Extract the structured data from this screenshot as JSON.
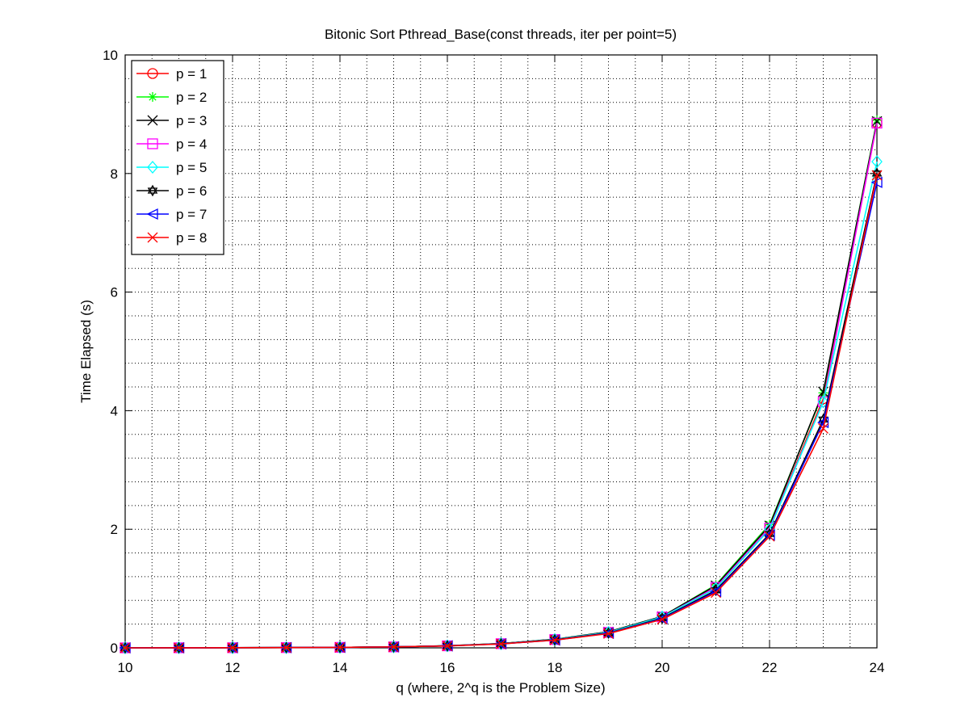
{
  "chart_data": {
    "type": "line",
    "title": "Bitonic Sort Pthread_Base(const threads, iter per point=5)",
    "xlabel": "q (where, 2^q is the Problem Size)",
    "ylabel": "Time Elapsed (s)",
    "xlim": [
      10,
      24
    ],
    "ylim": [
      0,
      10
    ],
    "xticks": [
      10,
      12,
      14,
      16,
      18,
      20,
      22,
      24
    ],
    "yticks": [
      0,
      2,
      4,
      6,
      8,
      10
    ],
    "x_minor_grid_step": 0.5,
    "y_minor_grid_step": 0.4,
    "grid": true,
    "legend_position": "top-left",
    "x": [
      10,
      11,
      12,
      13,
      14,
      15,
      16,
      17,
      18,
      19,
      20,
      21,
      22,
      23,
      24
    ],
    "series": [
      {
        "name": "p = 1",
        "color": "#ff0000",
        "marker": "circle",
        "values": [
          0.0,
          0.001,
          0.002,
          0.004,
          0.008,
          0.016,
          0.034,
          0.07,
          0.14,
          0.26,
          0.52,
          1.02,
          2.02,
          4.2,
          8.85
        ]
      },
      {
        "name": "p = 2",
        "color": "#00ff00",
        "marker": "asterisk",
        "values": [
          0.0,
          0.001,
          0.002,
          0.004,
          0.008,
          0.016,
          0.035,
          0.072,
          0.145,
          0.27,
          0.53,
          1.06,
          2.08,
          4.3,
          8.9
        ]
      },
      {
        "name": "p = 3",
        "color": "#000000",
        "marker": "x",
        "values": [
          0.0,
          0.001,
          0.002,
          0.004,
          0.008,
          0.016,
          0.035,
          0.072,
          0.145,
          0.27,
          0.53,
          1.05,
          2.06,
          4.32,
          8.88
        ]
      },
      {
        "name": "p = 4",
        "color": "#ff00ff",
        "marker": "square",
        "values": [
          0.0,
          0.001,
          0.002,
          0.004,
          0.008,
          0.016,
          0.034,
          0.07,
          0.14,
          0.26,
          0.52,
          1.02,
          2.02,
          4.15,
          8.85
        ]
      },
      {
        "name": "p = 5",
        "color": "#00ffff",
        "marker": "diamond",
        "values": [
          0.0,
          0.001,
          0.002,
          0.004,
          0.008,
          0.016,
          0.034,
          0.07,
          0.14,
          0.26,
          0.52,
          1.0,
          2.0,
          4.15,
          8.2
        ]
      },
      {
        "name": "p = 6",
        "color": "#000000",
        "marker": "hexagram",
        "values": [
          0.0,
          0.001,
          0.002,
          0.004,
          0.008,
          0.016,
          0.033,
          0.068,
          0.135,
          0.25,
          0.5,
          0.97,
          1.92,
          3.85,
          8.0
        ]
      },
      {
        "name": "p = 7",
        "color": "#0000ff",
        "marker": "triangle-left",
        "values": [
          0.0,
          0.001,
          0.002,
          0.004,
          0.008,
          0.016,
          0.033,
          0.067,
          0.13,
          0.245,
          0.49,
          0.95,
          1.9,
          3.8,
          7.85
        ]
      },
      {
        "name": "p = 8",
        "color": "#ff0000",
        "marker": "x",
        "values": [
          0.0,
          0.001,
          0.002,
          0.004,
          0.008,
          0.016,
          0.032,
          0.066,
          0.13,
          0.24,
          0.48,
          0.93,
          1.88,
          3.7,
          7.97
        ]
      }
    ]
  }
}
